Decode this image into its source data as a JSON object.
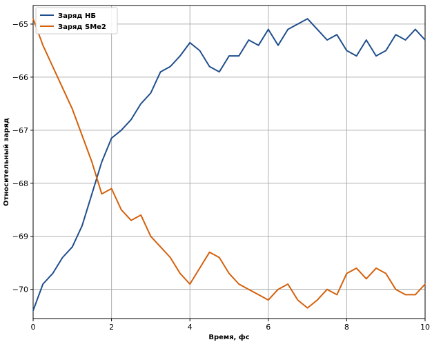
{
  "chart_data": {
    "type": "line",
    "xlabel": "Время, фс",
    "ylabel": "Относительный заряд",
    "xlim": [
      0,
      10
    ],
    "ylim": [
      -70.55,
      -64.65
    ],
    "xticks": [
      0,
      2,
      4,
      6,
      8,
      10
    ],
    "yticks": [
      -65,
      -66,
      -67,
      -68,
      -69,
      -70
    ],
    "grid": true,
    "legend_position": "top-left",
    "series": [
      {
        "name": "Заряд НБ",
        "color": "#1f4e8c",
        "x": [
          0.0,
          0.25,
          0.5,
          0.75,
          1.0,
          1.25,
          1.5,
          1.75,
          2.0,
          2.25,
          2.5,
          2.75,
          3.0,
          3.25,
          3.5,
          3.75,
          4.0,
          4.25,
          4.5,
          4.75,
          5.0,
          5.25,
          5.5,
          5.75,
          6.0,
          6.25,
          6.5,
          6.75,
          7.0,
          7.25,
          7.5,
          7.75,
          8.0,
          8.25,
          8.5,
          8.75,
          9.0,
          9.25,
          9.5,
          9.75,
          10.0
        ],
        "values": [
          -70.4,
          -69.9,
          -69.7,
          -69.4,
          -69.2,
          -68.8,
          -68.2,
          -67.6,
          -67.15,
          -67.0,
          -66.8,
          -66.5,
          -66.3,
          -65.9,
          -65.8,
          -65.6,
          -65.35,
          -65.5,
          -65.8,
          -65.9,
          -65.6,
          -65.6,
          -65.3,
          -65.4,
          -65.1,
          -65.4,
          -65.1,
          -65.0,
          -64.9,
          -65.1,
          -65.3,
          -65.2,
          -65.5,
          -65.6,
          -65.3,
          -65.6,
          -65.5,
          -65.2,
          -65.3,
          -65.1,
          -65.3
        ]
      },
      {
        "name": "Заряд SMe2",
        "color": "#d4600b",
        "x": [
          0.0,
          0.25,
          0.5,
          0.75,
          1.0,
          1.25,
          1.5,
          1.75,
          2.0,
          2.25,
          2.5,
          2.75,
          3.0,
          3.25,
          3.5,
          3.75,
          4.0,
          4.25,
          4.5,
          4.75,
          5.0,
          5.25,
          5.5,
          5.75,
          6.0,
          6.25,
          6.5,
          6.75,
          7.0,
          7.25,
          7.5,
          7.75,
          8.0,
          8.25,
          8.5,
          8.75,
          9.0,
          9.25,
          9.5,
          9.75,
          10.0
        ],
        "values": [
          -64.9,
          -65.4,
          -65.8,
          -66.2,
          -66.6,
          -67.1,
          -67.6,
          -68.2,
          -68.1,
          -68.5,
          -68.7,
          -68.6,
          -69.0,
          -69.2,
          -69.4,
          -69.7,
          -69.9,
          -69.6,
          -69.3,
          -69.4,
          -69.7,
          -69.9,
          -70.0,
          -70.1,
          -70.2,
          -70.0,
          -69.9,
          -70.2,
          -70.35,
          -70.2,
          -70.0,
          -70.1,
          -69.7,
          -69.6,
          -69.8,
          -69.6,
          -69.7,
          -70.0,
          -70.1,
          -70.1,
          -69.9
        ]
      }
    ]
  }
}
